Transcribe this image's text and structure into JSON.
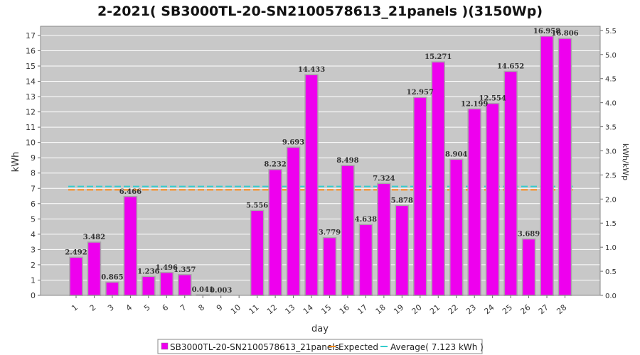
{
  "colors": {
    "bar": "#ee00ee",
    "bar_edge": "#a8a8a8",
    "plot_bg": "#c8c8c8",
    "grid": "#ffffff",
    "expected": "#ff8c1a",
    "average": "#33cccc"
  },
  "chart_data": {
    "type": "bar",
    "title": "2-2021( SB3000TL-20-SN2100578613_21panels )(3150Wp)",
    "xlabel": "day",
    "ylabel": "kWh",
    "y2label": "kWh/kWp",
    "categories": [
      "1",
      "2",
      "3",
      "4",
      "5",
      "6",
      "7",
      "8",
      "9",
      "10",
      "11",
      "12",
      "13",
      "14",
      "15",
      "16",
      "17",
      "18",
      "19",
      "20",
      "21",
      "22",
      "23",
      "24",
      "25",
      "26",
      "27",
      "28"
    ],
    "series": [
      {
        "name": "SB3000TL-20-SN2100578613_21panels",
        "values": [
          2.492,
          3.482,
          0.865,
          6.466,
          1.236,
          1.496,
          1.357,
          0.041,
          0.003,
          0,
          5.556,
          8.232,
          9.693,
          14.433,
          3.779,
          8.498,
          4.638,
          7.324,
          5.878,
          12.957,
          15.271,
          8.904,
          12.199,
          12.554,
          14.652,
          3.689,
          16.958,
          16.806
        ],
        "labels": [
          "2.492",
          "3.482",
          "0.865",
          "6.466",
          "1.236",
          "1.496",
          "1.357",
          "0.041",
          "0.003",
          "",
          "5.556",
          "8.232",
          "9.693",
          "14.433",
          "3.779",
          "8.498",
          "4.638",
          "7.324",
          "5.878",
          "12.957",
          "15.271",
          "8.904",
          "12.199",
          "12.554",
          "14.652",
          "3.689",
          "16.958",
          "16.806"
        ]
      }
    ],
    "expected": 6.9,
    "average": 7.123,
    "ylim": [
      0,
      17.6
    ],
    "yticks": [
      "0",
      "1",
      "2",
      "3",
      "4",
      "5",
      "6",
      "7",
      "8",
      "9",
      "10",
      "11",
      "12",
      "13",
      "14",
      "15",
      "16",
      "17"
    ],
    "y2lim": [
      0,
      5.587
    ],
    "y2ticks": [
      "0.0",
      "0.5",
      "1.0",
      "1.5",
      "2.0",
      "2.5",
      "3.0",
      "3.5",
      "4.0",
      "4.5",
      "5.0",
      "5.5"
    ],
    "grid": true,
    "legend_position": "bottom",
    "legend": {
      "series": "SB3000TL-20-SN2100578613_21panels",
      "expected": "Expected",
      "average": "Average( 7.123 kWh )"
    }
  }
}
